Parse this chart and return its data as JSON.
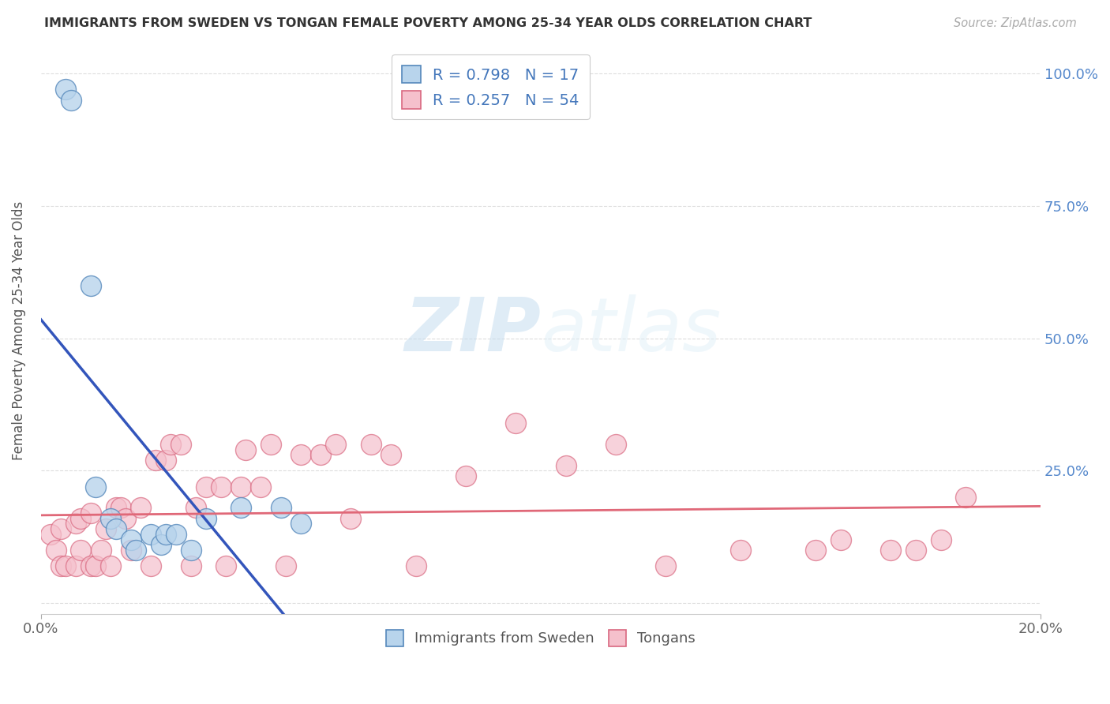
{
  "title": "IMMIGRANTS FROM SWEDEN VS TONGAN FEMALE POVERTY AMONG 25-34 YEAR OLDS CORRELATION CHART",
  "source": "Source: ZipAtlas.com",
  "ylabel": "Female Poverty Among 25-34 Year Olds",
  "xlim": [
    0.0,
    0.2
  ],
  "ylim": [
    -0.02,
    1.05
  ],
  "yticks": [
    0.0,
    0.25,
    0.5,
    0.75,
    1.0
  ],
  "ytick_labels_right": [
    "",
    "25.0%",
    "50.0%",
    "75.0%",
    "100.0%"
  ],
  "sweden_color": "#b8d4ec",
  "sweden_edge_color": "#5588bb",
  "tongan_color": "#f5c0cc",
  "tongan_edge_color": "#d96880",
  "sweden_line_color": "#3355bb",
  "tongan_line_color": "#e06878",
  "R_sweden": 0.798,
  "N_sweden": 17,
  "R_tongan": 0.257,
  "N_tongan": 54,
  "legend_sweden": "Immigrants from Sweden",
  "legend_tongan": "Tongans",
  "watermark_zip": "ZIP",
  "watermark_atlas": "atlas",
  "background_color": "#ffffff",
  "grid_color": "#dddddd",
  "sweden_x": [
    0.005,
    0.006,
    0.01,
    0.011,
    0.014,
    0.015,
    0.018,
    0.019,
    0.022,
    0.024,
    0.025,
    0.027,
    0.03,
    0.033,
    0.04,
    0.048,
    0.052
  ],
  "sweden_y": [
    0.97,
    0.95,
    0.6,
    0.22,
    0.16,
    0.14,
    0.12,
    0.1,
    0.13,
    0.11,
    0.13,
    0.13,
    0.1,
    0.16,
    0.18,
    0.18,
    0.15
  ],
  "tongan_x": [
    0.002,
    0.003,
    0.004,
    0.004,
    0.005,
    0.007,
    0.007,
    0.008,
    0.008,
    0.01,
    0.01,
    0.011,
    0.012,
    0.013,
    0.014,
    0.015,
    0.016,
    0.017,
    0.018,
    0.02,
    0.022,
    0.023,
    0.025,
    0.026,
    0.028,
    0.03,
    0.031,
    0.033,
    0.036,
    0.037,
    0.04,
    0.041,
    0.044,
    0.046,
    0.049,
    0.052,
    0.056,
    0.059,
    0.062,
    0.066,
    0.07,
    0.075,
    0.085,
    0.095,
    0.105,
    0.115,
    0.125,
    0.14,
    0.155,
    0.16,
    0.17,
    0.175,
    0.18,
    0.185
  ],
  "tongan_y": [
    0.13,
    0.1,
    0.07,
    0.14,
    0.07,
    0.07,
    0.15,
    0.1,
    0.16,
    0.07,
    0.17,
    0.07,
    0.1,
    0.14,
    0.07,
    0.18,
    0.18,
    0.16,
    0.1,
    0.18,
    0.07,
    0.27,
    0.27,
    0.3,
    0.3,
    0.07,
    0.18,
    0.22,
    0.22,
    0.07,
    0.22,
    0.29,
    0.22,
    0.3,
    0.07,
    0.28,
    0.28,
    0.3,
    0.16,
    0.3,
    0.28,
    0.07,
    0.24,
    0.34,
    0.26,
    0.3,
    0.07,
    0.1,
    0.1,
    0.12,
    0.1,
    0.1,
    0.12,
    0.2
  ]
}
